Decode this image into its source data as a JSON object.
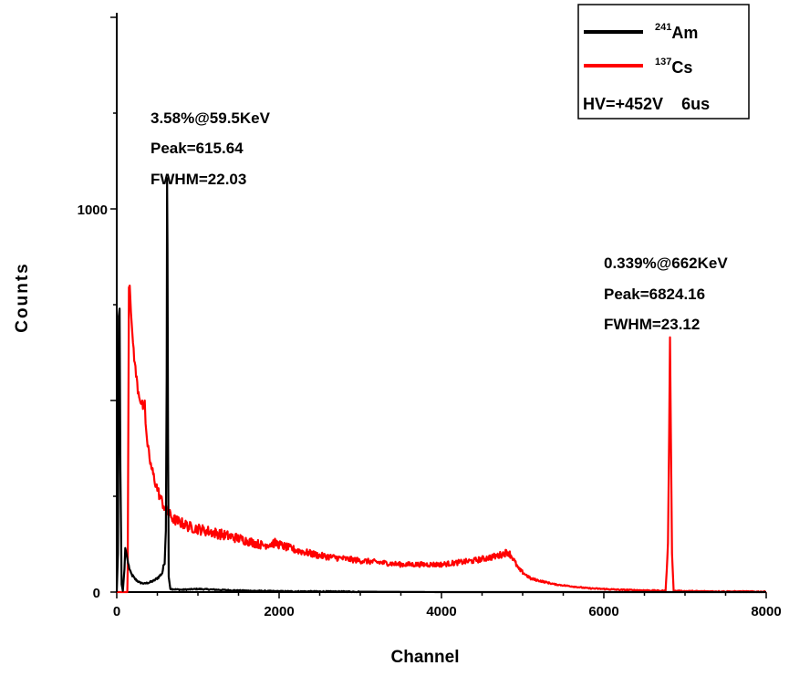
{
  "chart_data": {
    "type": "line",
    "xlabel": "Channel",
    "ylabel": "Counts",
    "xlim": [
      0,
      8000
    ],
    "ylim": [
      0,
      1000
    ],
    "x_ticks": [
      "0",
      "2000",
      "4000",
      "6000",
      "8000"
    ],
    "y_ticks": [
      "0",
      "1000"
    ],
    "grid": false,
    "legend_position": "top-right",
    "series": [
      {
        "name": "Am",
        "superscript": "241",
        "color": "#000000",
        "points": [
          [
            0,
            0
          ],
          [
            15,
            100
          ],
          [
            25,
            720
          ],
          [
            35,
            740
          ],
          [
            45,
            320
          ],
          [
            60,
            20
          ],
          [
            75,
            3
          ],
          [
            95,
            60
          ],
          [
            105,
            115
          ],
          [
            120,
            100
          ],
          [
            140,
            75
          ],
          [
            170,
            50
          ],
          [
            220,
            35
          ],
          [
            280,
            25
          ],
          [
            340,
            22
          ],
          [
            400,
            25
          ],
          [
            460,
            30
          ],
          [
            520,
            40
          ],
          [
            560,
            50
          ],
          [
            590,
            80
          ],
          [
            605,
            160
          ],
          [
            615,
            560
          ],
          [
            620,
            1080
          ],
          [
            625,
            900
          ],
          [
            632,
            400
          ],
          [
            640,
            40
          ],
          [
            660,
            8
          ],
          [
            800,
            6
          ],
          [
            1000,
            8
          ],
          [
            1500,
            4
          ],
          [
            2000,
            2
          ],
          [
            3000,
            1
          ],
          [
            4000,
            0
          ],
          [
            8000,
            0
          ]
        ]
      },
      {
        "name": "Cs",
        "superscript": "137",
        "color": "#ff0000",
        "points": [
          [
            0,
            0
          ],
          [
            130,
            0
          ],
          [
            135,
            60
          ],
          [
            150,
            795
          ],
          [
            160,
            800
          ],
          [
            175,
            730
          ],
          [
            200,
            650
          ],
          [
            230,
            580
          ],
          [
            260,
            530
          ],
          [
            300,
            495
          ],
          [
            330,
            480
          ],
          [
            345,
            500
          ],
          [
            355,
            440
          ],
          [
            380,
            380
          ],
          [
            420,
            330
          ],
          [
            470,
            290
          ],
          [
            530,
            250
          ],
          [
            600,
            215
          ],
          [
            700,
            190
          ],
          [
            900,
            170
          ],
          [
            1200,
            155
          ],
          [
            1500,
            140
          ],
          [
            1800,
            122
          ],
          [
            1950,
            128
          ],
          [
            2050,
            120
          ],
          [
            2200,
            110
          ],
          [
            2500,
            95
          ],
          [
            3000,
            82
          ],
          [
            3500,
            72
          ],
          [
            4000,
            72
          ],
          [
            4400,
            82
          ],
          [
            4700,
            95
          ],
          [
            4820,
            105
          ],
          [
            4870,
            92
          ],
          [
            4950,
            60
          ],
          [
            5100,
            35
          ],
          [
            5400,
            20
          ],
          [
            5800,
            10
          ],
          [
            6200,
            6
          ],
          [
            6600,
            4
          ],
          [
            6760,
            3
          ],
          [
            6790,
            120
          ],
          [
            6805,
            420
          ],
          [
            6815,
            665
          ],
          [
            6825,
            430
          ],
          [
            6840,
            100
          ],
          [
            6860,
            3
          ],
          [
            7200,
            2
          ],
          [
            8000,
            1
          ]
        ]
      }
    ],
    "annotations": [
      {
        "id": "am-peak",
        "lines": [
          "3.58%@59.5KeV",
          "Peak=615.64",
          "FWHM=22.03"
        ]
      },
      {
        "id": "cs-peak",
        "lines": [
          "0.339%@662KeV",
          "Peak=6824.16",
          "FWHM=23.12"
        ]
      }
    ],
    "legend_note": "HV=+452V    6us"
  }
}
